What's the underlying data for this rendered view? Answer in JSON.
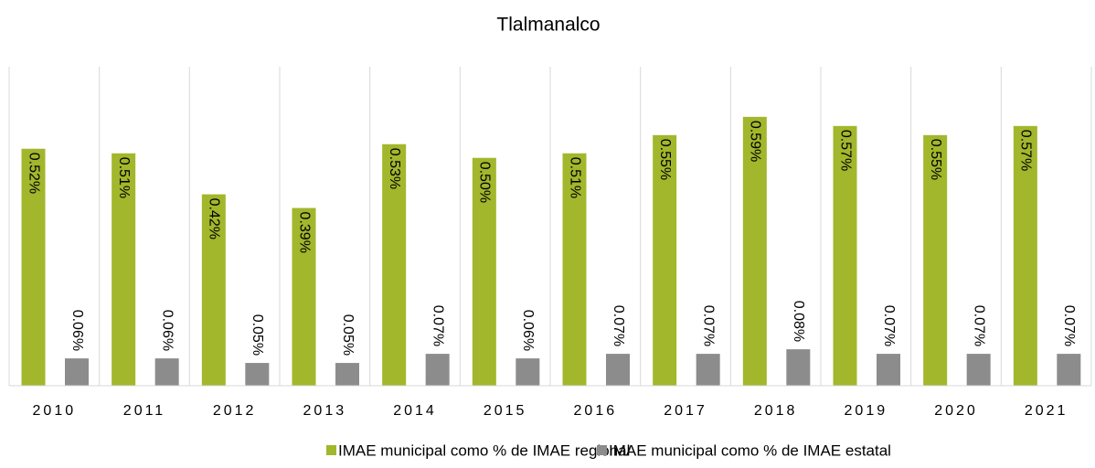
{
  "chart_data": {
    "type": "bar",
    "title": "Tlalmanalco",
    "categories": [
      "2010",
      "2011",
      "2012",
      "2013",
      "2014",
      "2015",
      "2016",
      "2017",
      "2018",
      "2019",
      "2020",
      "2021"
    ],
    "series": [
      {
        "name": "IMAE municipal como % de IMAE regional",
        "color": "#a2b72b",
        "values": [
          0.52,
          0.51,
          0.42,
          0.39,
          0.53,
          0.5,
          0.51,
          0.55,
          0.59,
          0.57,
          0.55,
          0.57
        ],
        "value_labels": [
          "0.52%",
          "0.51%",
          "0.42%",
          "0.39%",
          "0.53%",
          "0.50%",
          "0.51%",
          "0.55%",
          "0.59%",
          "0.57%",
          "0.55%",
          "0.57%"
        ]
      },
      {
        "name": "IMAE municipal como % de IMAE estatal",
        "color": "#8c8c8c",
        "values": [
          0.06,
          0.06,
          0.05,
          0.05,
          0.07,
          0.06,
          0.07,
          0.07,
          0.08,
          0.07,
          0.07,
          0.07
        ],
        "value_labels": [
          "0.06%",
          "0.06%",
          "0.05%",
          "0.05%",
          "0.07%",
          "0.06%",
          "0.07%",
          "0.07%",
          "0.08%",
          "0.07%",
          "0.07%",
          "0.07%"
        ]
      }
    ],
    "ylim": [
      0,
      0.7
    ]
  }
}
